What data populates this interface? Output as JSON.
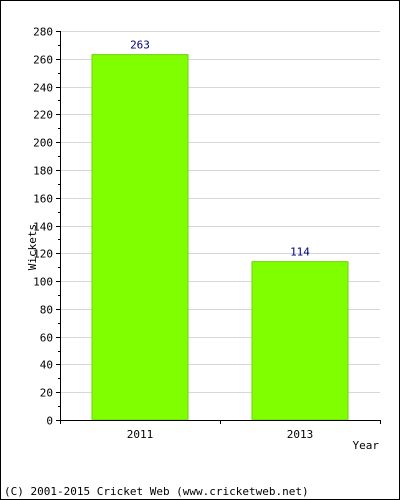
{
  "chart_data": {
    "type": "bar",
    "categories": [
      "2011",
      "2013"
    ],
    "values": [
      263,
      114
    ],
    "data_labels": [
      "263",
      "114"
    ],
    "title": "",
    "xlabel": "Year",
    "ylabel": "Wickets",
    "ylim": [
      0,
      280
    ],
    "yticks": [
      0,
      20,
      40,
      60,
      80,
      100,
      120,
      140,
      160,
      180,
      200,
      220,
      240,
      260,
      280
    ],
    "grid": true,
    "legend": "none",
    "colors": {
      "bar": "#80ff00",
      "bar_edge": "#6ad400",
      "grid": "#d8d8d8",
      "axis": "#000000",
      "data_label": "#000080",
      "frame": "#000000"
    }
  },
  "footer": {
    "copyright": "(C) 2001-2015 Cricket Web (www.cricketweb.net)"
  }
}
